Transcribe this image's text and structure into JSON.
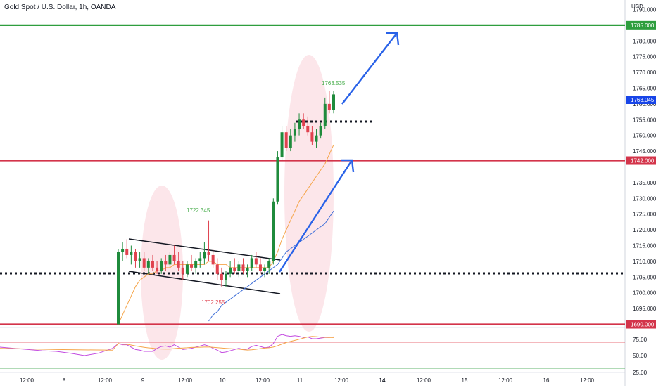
{
  "header": {
    "title": "Gold Spot / U.S. Dollar, 1h, OANDA"
  },
  "price_axis": {
    "currency": "USD",
    "ticks": [
      "1790.000",
      "1780.000",
      "1775.000",
      "1770.000",
      "1765.000",
      "1760.000",
      "1755.000",
      "1750.000",
      "1745.000",
      "1735.000",
      "1730.000",
      "1725.000",
      "1720.000",
      "1715.000",
      "1710.000",
      "1705.000",
      "1700.000",
      "1695.000"
    ]
  },
  "time_axis": {
    "ticks": [
      "12:00",
      "8",
      "12:00",
      "9",
      "12:00",
      "10",
      "12:00",
      "11",
      "12:00",
      "14",
      "12:00",
      "15",
      "12:00",
      "16",
      "12:00"
    ]
  },
  "levels": [
    {
      "label": "1785.000",
      "price": 1785,
      "color": "#2e9e3e"
    },
    {
      "label": "1742.000",
      "price": 1742,
      "color": "#d3344a"
    },
    {
      "label": "1690.000",
      "price": 1690,
      "color": "#d3344a"
    }
  ],
  "last_price": {
    "label": "1763.045",
    "price": 1763.045,
    "color": "#1845e8"
  },
  "annotations": [
    {
      "text": "1722.345",
      "color": "#4caf50"
    },
    {
      "text": "1702.255",
      "color": "#e0424f"
    },
    {
      "text": "1763.535",
      "color": "#4caf50"
    }
  ],
  "rsi_axis": {
    "ticks": [
      "75.00",
      "50.00",
      "25.00"
    ]
  },
  "colors": {
    "up": "#1f8b3c",
    "down": "#e0424f",
    "ma_fast": "#f5a54a",
    "ma_slow": "#3f6fd8",
    "rsi": "#c34be0",
    "arrow": "#2962e8"
  },
  "chart_data": {
    "type": "candlestick",
    "title": "Gold Spot / U.S. Dollar, 1h, OANDA",
    "ylabel": "USD",
    "ylim": [
      1689,
      1793
    ],
    "candles": [
      {
        "t": "Jun 9 03:00",
        "o": 1690,
        "h": 1714,
        "l": 1690,
        "c": 1713
      },
      {
        "t": "Jun 9 04:00",
        "o": 1713,
        "h": 1716,
        "l": 1710,
        "c": 1714
      },
      {
        "t": "Jun 9 05:00",
        "o": 1714,
        "h": 1717,
        "l": 1711,
        "c": 1712
      },
      {
        "t": "Jun 9 06:00",
        "o": 1712,
        "h": 1715,
        "l": 1709,
        "c": 1713
      },
      {
        "t": "Jun 9 07:00",
        "o": 1713,
        "h": 1714,
        "l": 1708,
        "c": 1710
      },
      {
        "t": "Jun 9 08:00",
        "o": 1710,
        "h": 1713,
        "l": 1708,
        "c": 1711
      },
      {
        "t": "Jun 9 09:00",
        "o": 1711,
        "h": 1713,
        "l": 1707,
        "c": 1708
      },
      {
        "t": "Jun 9 10:00",
        "o": 1708,
        "h": 1711,
        "l": 1706,
        "c": 1710
      },
      {
        "t": "Jun 9 11:00",
        "o": 1710,
        "h": 1712,
        "l": 1707,
        "c": 1708
      },
      {
        "t": "Jun 9 12:00",
        "o": 1708,
        "h": 1710,
        "l": 1706,
        "c": 1707
      },
      {
        "t": "Jun 9 13:00",
        "o": 1707,
        "h": 1711,
        "l": 1706,
        "c": 1710
      },
      {
        "t": "Jun 9 14:00",
        "o": 1710,
        "h": 1712,
        "l": 1707,
        "c": 1709
      },
      {
        "t": "Jun 9 15:00",
        "o": 1709,
        "h": 1713,
        "l": 1708,
        "c": 1712
      },
      {
        "t": "Jun 9 16:00",
        "o": 1712,
        "h": 1715,
        "l": 1709,
        "c": 1710
      },
      {
        "t": "Jun 9 17:00",
        "o": 1710,
        "h": 1713,
        "l": 1707,
        "c": 1708
      },
      {
        "t": "Jun 9 18:00",
        "o": 1708,
        "h": 1710,
        "l": 1704,
        "c": 1706
      },
      {
        "t": "Jun 9 19:00",
        "o": 1706,
        "h": 1710,
        "l": 1705,
        "c": 1709
      },
      {
        "t": "Jun 9 20:00",
        "o": 1709,
        "h": 1712,
        "l": 1707,
        "c": 1708
      },
      {
        "t": "Jun 9 21:00",
        "o": 1708,
        "h": 1711,
        "l": 1706,
        "c": 1710
      },
      {
        "t": "Jun 9 22:00",
        "o": 1710,
        "h": 1713,
        "l": 1708,
        "c": 1711
      },
      {
        "t": "Jun 9 23:00",
        "o": 1711,
        "h": 1716,
        "l": 1709,
        "c": 1713
      },
      {
        "t": "Jun 10 00:00",
        "o": 1713,
        "h": 1723,
        "l": 1710,
        "c": 1712
      },
      {
        "t": "Jun 10 01:00",
        "o": 1712,
        "h": 1714,
        "l": 1708,
        "c": 1709
      },
      {
        "t": "Jun 10 02:00",
        "o": 1709,
        "h": 1711,
        "l": 1704,
        "c": 1706
      },
      {
        "t": "Jun 10 03:00",
        "o": 1706,
        "h": 1708,
        "l": 1702,
        "c": 1704
      },
      {
        "t": "Jun 10 04:00",
        "o": 1704,
        "h": 1707,
        "l": 1702,
        "c": 1706
      },
      {
        "t": "Jun 10 05:00",
        "o": 1706,
        "h": 1710,
        "l": 1705,
        "c": 1708
      },
      {
        "t": "Jun 10 06:00",
        "o": 1708,
        "h": 1711,
        "l": 1706,
        "c": 1707
      },
      {
        "t": "Jun 10 07:00",
        "o": 1707,
        "h": 1710,
        "l": 1705,
        "c": 1709
      },
      {
        "t": "Jun 10 08:00",
        "o": 1709,
        "h": 1711,
        "l": 1706,
        "c": 1707
      },
      {
        "t": "Jun 10 09:00",
        "o": 1707,
        "h": 1709,
        "l": 1705,
        "c": 1708
      },
      {
        "t": "Jun 10 10:00",
        "o": 1708,
        "h": 1712,
        "l": 1707,
        "c": 1711
      },
      {
        "t": "Jun 10 11:00",
        "o": 1711,
        "h": 1713,
        "l": 1708,
        "c": 1709
      },
      {
        "t": "Jun 10 12:00",
        "o": 1709,
        "h": 1711,
        "l": 1706,
        "c": 1707
      },
      {
        "t": "Jun 10 13:00",
        "o": 1707,
        "h": 1709,
        "l": 1705,
        "c": 1708
      },
      {
        "t": "Jun 10 14:00",
        "o": 1708,
        "h": 1711,
        "l": 1706,
        "c": 1710
      },
      {
        "t": "Jun 10 15:00",
        "o": 1710,
        "h": 1730,
        "l": 1709,
        "c": 1729
      },
      {
        "t": "Jun 10 16:00",
        "o": 1729,
        "h": 1745,
        "l": 1728,
        "c": 1743
      },
      {
        "t": "Jun 10 17:00",
        "o": 1743,
        "h": 1753,
        "l": 1742,
        "c": 1751
      },
      {
        "t": "Jun 10 18:00",
        "o": 1751,
        "h": 1753,
        "l": 1745,
        "c": 1746
      },
      {
        "t": "Jun 10 19:00",
        "o": 1746,
        "h": 1752,
        "l": 1745,
        "c": 1750
      },
      {
        "t": "Jun 10 20:00",
        "o": 1750,
        "h": 1754,
        "l": 1748,
        "c": 1752
      },
      {
        "t": "Jun 10 21:00",
        "o": 1752,
        "h": 1757,
        "l": 1750,
        "c": 1755
      },
      {
        "t": "Jun 10 22:00",
        "o": 1755,
        "h": 1757,
        "l": 1752,
        "c": 1753
      },
      {
        "t": "Jun 10 23:00",
        "o": 1753,
        "h": 1756,
        "l": 1750,
        "c": 1751
      },
      {
        "t": "Jun 11 00:00",
        "o": 1751,
        "h": 1753,
        "l": 1747,
        "c": 1748
      },
      {
        "t": "Jun 11 01:00",
        "o": 1748,
        "h": 1752,
        "l": 1746,
        "c": 1750
      },
      {
        "t": "Jun 11 02:00",
        "o": 1750,
        "h": 1754,
        "l": 1749,
        "c": 1753
      },
      {
        "t": "Jun 11 03:00",
        "o": 1753,
        "h": 1762,
        "l": 1752,
        "c": 1760
      },
      {
        "t": "Jun 11 04:00",
        "o": 1760,
        "h": 1764,
        "l": 1757,
        "c": 1758
      },
      {
        "t": "Jun 11 05:00",
        "o": 1758,
        "h": 1764,
        "l": 1757,
        "c": 1763
      }
    ],
    "ma_fast": [
      1690,
      1693,
      1696,
      1699,
      1702,
      1704,
      1705,
      1706,
      1706,
      1707,
      1707,
      1708,
      1708,
      1709,
      1709,
      1709,
      1709,
      1709,
      1709,
      1709,
      1709,
      1710,
      1710,
      1709,
      1709,
      1709,
      1708,
      1708,
      1708,
      1708,
      1708,
      1708,
      1708,
      1708,
      1708,
      1708,
      1710,
      1713,
      1717,
      1720,
      1723,
      1726,
      1729,
      1731,
      1733,
      1735,
      1737,
      1739,
      1741,
      1744,
      1747
    ],
    "ma_slow": [
      null,
      null,
      null,
      null,
      null,
      null,
      null,
      null,
      null,
      null,
      null,
      null,
      null,
      null,
      null,
      null,
      null,
      null,
      null,
      null,
      null,
      1691,
      1693,
      1694,
      1696,
      1697,
      1698,
      1699,
      1700,
      1701,
      1702,
      1703,
      1704,
      1705,
      1706,
      1707,
      1708,
      1709,
      1711,
      1713,
      1714,
      1715,
      1716,
      1717,
      1718,
      1719,
      1720,
      1721,
      1722,
      1724,
      1726
    ],
    "rsi": [
      68,
      66,
      66,
      62,
      58,
      57,
      55,
      55,
      55,
      60,
      63,
      64,
      62,
      66,
      62,
      58,
      59,
      60,
      62,
      64,
      66,
      64,
      60,
      57,
      53,
      54,
      56,
      58,
      60,
      58,
      59,
      63,
      65,
      63,
      61,
      62,
      68,
      80,
      83,
      81,
      80,
      81,
      80,
      78,
      79,
      76,
      76,
      77,
      78,
      78,
      79
    ],
    "rsi_lines": [
      70,
      30
    ],
    "levels": [
      1785,
      1742,
      1690
    ],
    "dotted_levels": [
      1707,
      1756
    ]
  }
}
